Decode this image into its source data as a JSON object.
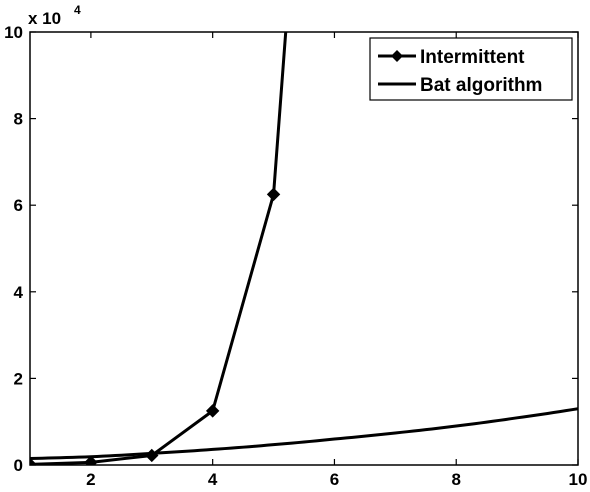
{
  "chart_data": {
    "type": "line",
    "title": "",
    "xlabel": "",
    "ylabel": "",
    "xlim": [
      1,
      10
    ],
    "ylim": [
      0,
      100000
    ],
    "y_exponent_label": {
      "base": "x 10",
      "power": "4"
    },
    "x_ticks": [
      2,
      4,
      6,
      8,
      10
    ],
    "x_tick_labels": [
      "2",
      "4",
      "6",
      "8",
      "10"
    ],
    "y_ticks": [
      0,
      20000,
      40000,
      60000,
      80000,
      100000
    ],
    "y_tick_labels": [
      "0",
      "2",
      "4",
      "6",
      "8",
      "10"
    ],
    "grid": false,
    "legend_position": "top-right",
    "series": [
      {
        "name": "Intermittent",
        "marker": "diamond",
        "color": "#000000",
        "x": [
          1,
          2,
          3,
          4,
          5,
          5.2
        ],
        "y": [
          150,
          600,
          2200,
          12500,
          62500,
          100000
        ],
        "marker_x": [
          1,
          2,
          3,
          4,
          5
        ],
        "marker_y": [
          150,
          600,
          2200,
          12500,
          62500
        ]
      },
      {
        "name": "Bat algorithm",
        "marker": "none",
        "color": "#000000",
        "x": [
          1,
          2,
          3,
          4,
          5,
          6,
          7,
          8,
          9,
          10
        ],
        "y": [
          1500,
          1900,
          2700,
          3600,
          4700,
          6000,
          7400,
          9000,
          10900,
          13000
        ]
      }
    ]
  }
}
